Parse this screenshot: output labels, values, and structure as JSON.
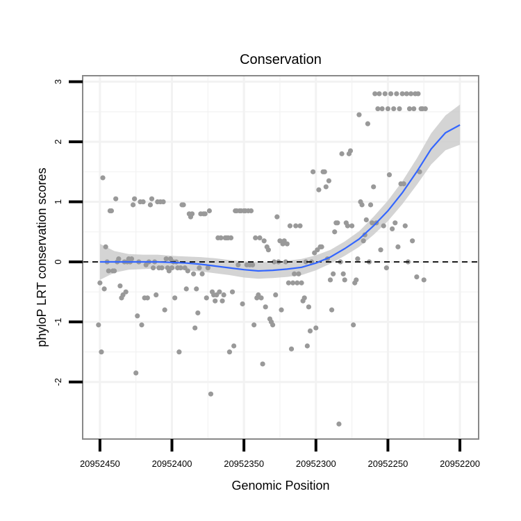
{
  "chart_data": {
    "type": "scatter",
    "title": "Conservation",
    "xlabel": "Genomic Position",
    "ylabel": "phyloP LRT conservation scores",
    "xlim": [
      20952462,
      20952187
    ],
    "ylim": [
      -2.95,
      3.1
    ],
    "x_reversed": true,
    "xticks": [
      20952450,
      20952400,
      20952350,
      20952300,
      20952250,
      20952200
    ],
    "xtick_labels": [
      "20952450",
      "20952400",
      "20952350",
      "20952300",
      "20952250",
      "20952200"
    ],
    "yticks": [
      -2,
      -1,
      0,
      1,
      2,
      3
    ],
    "ytick_labels": [
      "-2",
      "-1",
      "0",
      "1",
      "2",
      "3"
    ],
    "grid": true,
    "reference_line": {
      "y": 0,
      "style": "dashed"
    },
    "colors": {
      "points": "#999999",
      "smooth": "#3366ff",
      "ribbon": "#cccccc",
      "border": "#888888",
      "grid": "#f2f2f2"
    },
    "points": [
      {
        "x": 20952451,
        "y": -1.05
      },
      {
        "x": 20952450,
        "y": -0.35
      },
      {
        "x": 20952449,
        "y": -1.5
      },
      {
        "x": 20952448,
        "y": 1.4
      },
      {
        "x": 20952447,
        "y": -0.45
      },
      {
        "x": 20952446,
        "y": 0.25
      },
      {
        "x": 20952445,
        "y": 0.0
      },
      {
        "x": 20952444,
        "y": -0.15
      },
      {
        "x": 20952443,
        "y": 0.85
      },
      {
        "x": 20952442,
        "y": 0.85
      },
      {
        "x": 20952441,
        "y": -0.15
      },
      {
        "x": 20952440,
        "y": -0.15
      },
      {
        "x": 20952439,
        "y": 1.05
      },
      {
        "x": 20952438,
        "y": 0.0
      },
      {
        "x": 20952437,
        "y": 0.05
      },
      {
        "x": 20952436,
        "y": -0.4
      },
      {
        "x": 20952435,
        "y": -0.6
      },
      {
        "x": 20952434,
        "y": -0.55
      },
      {
        "x": 20952433,
        "y": 0.0
      },
      {
        "x": 20952432,
        "y": -0.5
      },
      {
        "x": 20952431,
        "y": 0.0
      },
      {
        "x": 20952430,
        "y": 0.05
      },
      {
        "x": 20952429,
        "y": 0.0
      },
      {
        "x": 20952428,
        "y": 0.05
      },
      {
        "x": 20952427,
        "y": 0.95
      },
      {
        "x": 20952426,
        "y": 1.05
      },
      {
        "x": 20952425,
        "y": -1.85
      },
      {
        "x": 20952424,
        "y": -0.9
      },
      {
        "x": 20952423,
        "y": 0.0
      },
      {
        "x": 20952422,
        "y": 1.0
      },
      {
        "x": 20952421,
        "y": -1.05
      },
      {
        "x": 20952420,
        "y": 1.0
      },
      {
        "x": 20952419,
        "y": -0.6
      },
      {
        "x": 20952418,
        "y": -0.05
      },
      {
        "x": 20952417,
        "y": -0.6
      },
      {
        "x": 20952416,
        "y": 0.0
      },
      {
        "x": 20952415,
        "y": 0.95
      },
      {
        "x": 20952414,
        "y": 1.05
      },
      {
        "x": 20952413,
        "y": -0.1
      },
      {
        "x": 20952412,
        "y": 0.0
      },
      {
        "x": 20952411,
        "y": -0.55
      },
      {
        "x": 20952410,
        "y": 1.0
      },
      {
        "x": 20952409,
        "y": -0.1
      },
      {
        "x": 20952408,
        "y": 1.0
      },
      {
        "x": 20952407,
        "y": -0.1
      },
      {
        "x": 20952406,
        "y": 1.0
      },
      {
        "x": 20952405,
        "y": -0.8
      },
      {
        "x": 20952404,
        "y": 0.05
      },
      {
        "x": 20952403,
        "y": -0.1
      },
      {
        "x": 20952402,
        "y": -0.15
      },
      {
        "x": 20952401,
        "y": 0.05
      },
      {
        "x": 20952400,
        "y": -0.1
      },
      {
        "x": 20952399,
        "y": 0.0
      },
      {
        "x": 20952398,
        "y": -0.6
      },
      {
        "x": 20952397,
        "y": 0.0
      },
      {
        "x": 20952396,
        "y": -0.1
      },
      {
        "x": 20952395,
        "y": -1.5
      },
      {
        "x": 20952394,
        "y": -0.1
      },
      {
        "x": 20952393,
        "y": 0.95
      },
      {
        "x": 20952392,
        "y": 0.95
      },
      {
        "x": 20952391,
        "y": -0.1
      },
      {
        "x": 20952390,
        "y": -0.45
      },
      {
        "x": 20952389,
        "y": -0.15
      },
      {
        "x": 20952388,
        "y": 0.8
      },
      {
        "x": 20952387,
        "y": 0.75
      },
      {
        "x": 20952386,
        "y": 0.8
      },
      {
        "x": 20952385,
        "y": -0.2
      },
      {
        "x": 20952384,
        "y": -1.1
      },
      {
        "x": 20952383,
        "y": -0.45
      },
      {
        "x": 20952382,
        "y": -0.85
      },
      {
        "x": 20952381,
        "y": -0.1
      },
      {
        "x": 20952380,
        "y": 0.8
      },
      {
        "x": 20952379,
        "y": -0.2
      },
      {
        "x": 20952378,
        "y": 0.8
      },
      {
        "x": 20952377,
        "y": 0.8
      },
      {
        "x": 20952376,
        "y": -0.6
      },
      {
        "x": 20952375,
        "y": -0.1
      },
      {
        "x": 20952374,
        "y": 0.85
      },
      {
        "x": 20952373,
        "y": -2.2
      },
      {
        "x": 20952372,
        "y": -0.5
      },
      {
        "x": 20952371,
        "y": -0.55
      },
      {
        "x": 20952370,
        "y": -0.65
      },
      {
        "x": 20952369,
        "y": -0.55
      },
      {
        "x": 20952368,
        "y": 0.4
      },
      {
        "x": 20952367,
        "y": -0.5
      },
      {
        "x": 20952366,
        "y": 0.4
      },
      {
        "x": 20952365,
        "y": -0.65
      },
      {
        "x": 20952364,
        "y": -0.55
      },
      {
        "x": 20952363,
        "y": 0.4
      },
      {
        "x": 20952362,
        "y": 0.4
      },
      {
        "x": 20952361,
        "y": 0.4
      },
      {
        "x": 20952360,
        "y": -1.5
      },
      {
        "x": 20952359,
        "y": 0.4
      },
      {
        "x": 20952358,
        "y": -0.5
      },
      {
        "x": 20952357,
        "y": -1.4
      },
      {
        "x": 20952356,
        "y": 0.85
      },
      {
        "x": 20952355,
        "y": 0.85
      },
      {
        "x": 20952354,
        "y": -0.05
      },
      {
        "x": 20952353,
        "y": 0.85
      },
      {
        "x": 20952352,
        "y": 0.85
      },
      {
        "x": 20952351,
        "y": -0.7
      },
      {
        "x": 20952350,
        "y": 0.85
      },
      {
        "x": 20952349,
        "y": 0.85
      },
      {
        "x": 20952348,
        "y": -0.05
      },
      {
        "x": 20952347,
        "y": 0.85
      },
      {
        "x": 20952346,
        "y": -0.05
      },
      {
        "x": 20952345,
        "y": 0.85
      },
      {
        "x": 20952344,
        "y": -0.05
      },
      {
        "x": 20952343,
        "y": -1.05
      },
      {
        "x": 20952342,
        "y": 0.4
      },
      {
        "x": 20952341,
        "y": -0.6
      },
      {
        "x": 20952340,
        "y": -0.55
      },
      {
        "x": 20952339,
        "y": 0.4
      },
      {
        "x": 20952338,
        "y": -0.6
      },
      {
        "x": 20952337,
        "y": -1.7
      },
      {
        "x": 20952336,
        "y": 0.35
      },
      {
        "x": 20952335,
        "y": -0.75
      },
      {
        "x": 20952334,
        "y": 0.25
      },
      {
        "x": 20952333,
        "y": 0.2
      },
      {
        "x": 20952332,
        "y": -0.95
      },
      {
        "x": 20952331,
        "y": -1.0
      },
      {
        "x": 20952330,
        "y": -1.05
      },
      {
        "x": 20952329,
        "y": 0.0
      },
      {
        "x": 20952328,
        "y": -0.55
      },
      {
        "x": 20952327,
        "y": 0.75
      },
      {
        "x": 20952326,
        "y": 0.0
      },
      {
        "x": 20952325,
        "y": 0.35
      },
      {
        "x": 20952324,
        "y": -0.8
      },
      {
        "x": 20952323,
        "y": 0.3
      },
      {
        "x": 20952322,
        "y": 0.35
      },
      {
        "x": 20952321,
        "y": 0.0
      },
      {
        "x": 20952320,
        "y": 0.3
      },
      {
        "x": 20952319,
        "y": -0.35
      },
      {
        "x": 20952318,
        "y": 0.6
      },
      {
        "x": 20952317,
        "y": -1.45
      },
      {
        "x": 20952316,
        "y": -0.35
      },
      {
        "x": 20952315,
        "y": -0.2
      },
      {
        "x": 20952314,
        "y": 0.6
      },
      {
        "x": 20952313,
        "y": -0.35
      },
      {
        "x": 20952312,
        "y": -0.2
      },
      {
        "x": 20952311,
        "y": 0.6
      },
      {
        "x": 20952310,
        "y": -0.35
      },
      {
        "x": 20952309,
        "y": -0.65
      },
      {
        "x": 20952308,
        "y": -0.6
      },
      {
        "x": 20952307,
        "y": 0.0
      },
      {
        "x": 20952306,
        "y": -1.4
      },
      {
        "x": 20952305,
        "y": -0.75
      },
      {
        "x": 20952304,
        "y": -1.15
      },
      {
        "x": 20952303,
        "y": 0.0
      },
      {
        "x": 20952302,
        "y": 1.5
      },
      {
        "x": 20952301,
        "y": 0.15
      },
      {
        "x": 20952300,
        "y": -1.1
      },
      {
        "x": 20952299,
        "y": 0.2
      },
      {
        "x": 20952298,
        "y": 1.2
      },
      {
        "x": 20952297,
        "y": 0.25
      },
      {
        "x": 20952296,
        "y": 0.25
      },
      {
        "x": 20952295,
        "y": 1.5
      },
      {
        "x": 20952294,
        "y": 1.5
      },
      {
        "x": 20952293,
        "y": 1.25
      },
      {
        "x": 20952292,
        "y": 0.05
      },
      {
        "x": 20952291,
        "y": 1.35
      },
      {
        "x": 20952290,
        "y": -0.3
      },
      {
        "x": 20952289,
        "y": -0.8
      },
      {
        "x": 20952288,
        "y": -0.2
      },
      {
        "x": 20952287,
        "y": 0.5
      },
      {
        "x": 20952286,
        "y": 0.65
      },
      {
        "x": 20952285,
        "y": 0.65
      },
      {
        "x": 20952284,
        "y": -2.7
      },
      {
        "x": 20952283,
        "y": 0.0
      },
      {
        "x": 20952282,
        "y": 1.8
      },
      {
        "x": 20952281,
        "y": -0.2
      },
      {
        "x": 20952280,
        "y": -0.3
      },
      {
        "x": 20952279,
        "y": 0.65
      },
      {
        "x": 20952278,
        "y": 0.6
      },
      {
        "x": 20952277,
        "y": 1.8
      },
      {
        "x": 20952276,
        "y": 1.85
      },
      {
        "x": 20952275,
        "y": 0.6
      },
      {
        "x": 20952274,
        "y": -1.05
      },
      {
        "x": 20952273,
        "y": -0.35
      },
      {
        "x": 20952272,
        "y": -0.3
      },
      {
        "x": 20952271,
        "y": 0.05
      },
      {
        "x": 20952270,
        "y": 2.45
      },
      {
        "x": 20952269,
        "y": 1.0
      },
      {
        "x": 20952268,
        "y": 0.95
      },
      {
        "x": 20952267,
        "y": 0.35
      },
      {
        "x": 20952266,
        "y": 0.45
      },
      {
        "x": 20952265,
        "y": 0.7
      },
      {
        "x": 20952264,
        "y": 2.3
      },
      {
        "x": 20952263,
        "y": 0.0
      },
      {
        "x": 20952262,
        "y": 0.95
      },
      {
        "x": 20952261,
        "y": 0.65
      },
      {
        "x": 20952260,
        "y": 1.25
      },
      {
        "x": 20952259,
        "y": 2.8
      },
      {
        "x": 20952258,
        "y": 0.65
      },
      {
        "x": 20952257,
        "y": 2.55
      },
      {
        "x": 20952256,
        "y": 2.8
      },
      {
        "x": 20952255,
        "y": 0.2
      },
      {
        "x": 20952254,
        "y": 2.55
      },
      {
        "x": 20952253,
        "y": 0.6
      },
      {
        "x": 20952252,
        "y": 2.8
      },
      {
        "x": 20952251,
        "y": -0.1
      },
      {
        "x": 20952250,
        "y": 2.55
      },
      {
        "x": 20952249,
        "y": 1.45
      },
      {
        "x": 20952248,
        "y": 2.8
      },
      {
        "x": 20952247,
        "y": 0.55
      },
      {
        "x": 20952246,
        "y": 2.55
      },
      {
        "x": 20952245,
        "y": 0.65
      },
      {
        "x": 20952244,
        "y": 2.8
      },
      {
        "x": 20952243,
        "y": 0.25
      },
      {
        "x": 20952242,
        "y": 2.55
      },
      {
        "x": 20952241,
        "y": 1.3
      },
      {
        "x": 20952240,
        "y": 2.8
      },
      {
        "x": 20952239,
        "y": 1.3
      },
      {
        "x": 20952238,
        "y": 0.6
      },
      {
        "x": 20952237,
        "y": 2.8
      },
      {
        "x": 20952236,
        "y": 0.0
      },
      {
        "x": 20952235,
        "y": 2.55
      },
      {
        "x": 20952234,
        "y": 2.8
      },
      {
        "x": 20952233,
        "y": 0.35
      },
      {
        "x": 20952232,
        "y": 2.55
      },
      {
        "x": 20952231,
        "y": 2.8
      },
      {
        "x": 20952230,
        "y": -0.25
      },
      {
        "x": 20952229,
        "y": 2.8
      },
      {
        "x": 20952228,
        "y": 1.5
      },
      {
        "x": 20952227,
        "y": 2.55
      },
      {
        "x": 20952226,
        "y": 2.55
      },
      {
        "x": 20952225,
        "y": -0.3
      },
      {
        "x": 20952224,
        "y": 2.55
      }
    ],
    "smooth": [
      {
        "x": 20952450,
        "y": 0.0,
        "lo": -0.3,
        "hi": 0.3
      },
      {
        "x": 20952440,
        "y": 0.0,
        "lo": -0.18,
        "hi": 0.18
      },
      {
        "x": 20952430,
        "y": 0.0,
        "lo": -0.13,
        "hi": 0.13
      },
      {
        "x": 20952420,
        "y": 0.0,
        "lo": -0.12,
        "hi": 0.12
      },
      {
        "x": 20952410,
        "y": 0.0,
        "lo": -0.11,
        "hi": 0.12
      },
      {
        "x": 20952400,
        "y": -0.01,
        "lo": -0.12,
        "hi": 0.1
      },
      {
        "x": 20952390,
        "y": -0.02,
        "lo": -0.14,
        "hi": 0.09
      },
      {
        "x": 20952380,
        "y": -0.04,
        "lo": -0.16,
        "hi": 0.08
      },
      {
        "x": 20952370,
        "y": -0.07,
        "lo": -0.19,
        "hi": 0.06
      },
      {
        "x": 20952360,
        "y": -0.1,
        "lo": -0.22,
        "hi": 0.03
      },
      {
        "x": 20952350,
        "y": -0.13,
        "lo": -0.26,
        "hi": 0.01
      },
      {
        "x": 20952340,
        "y": -0.15,
        "lo": -0.28,
        "hi": -0.01
      },
      {
        "x": 20952330,
        "y": -0.14,
        "lo": -0.27,
        "hi": 0.0
      },
      {
        "x": 20952320,
        "y": -0.12,
        "lo": -0.25,
        "hi": 0.02
      },
      {
        "x": 20952310,
        "y": -0.09,
        "lo": -0.22,
        "hi": 0.05
      },
      {
        "x": 20952300,
        "y": -0.02,
        "lo": -0.14,
        "hi": 0.11
      },
      {
        "x": 20952290,
        "y": 0.08,
        "lo": -0.03,
        "hi": 0.2
      },
      {
        "x": 20952280,
        "y": 0.22,
        "lo": 0.1,
        "hi": 0.34
      },
      {
        "x": 20952270,
        "y": 0.38,
        "lo": 0.25,
        "hi": 0.51
      },
      {
        "x": 20952260,
        "y": 0.6,
        "lo": 0.45,
        "hi": 0.75
      },
      {
        "x": 20952250,
        "y": 0.85,
        "lo": 0.68,
        "hi": 1.02
      },
      {
        "x": 20952240,
        "y": 1.15,
        "lo": 0.96,
        "hi": 1.34
      },
      {
        "x": 20952230,
        "y": 1.5,
        "lo": 1.28,
        "hi": 1.72
      },
      {
        "x": 20952220,
        "y": 1.88,
        "lo": 1.62,
        "hi": 2.14
      },
      {
        "x": 20952210,
        "y": 2.15,
        "lo": 1.86,
        "hi": 2.44
      },
      {
        "x": 20952200,
        "y": 2.28,
        "lo": 1.95,
        "hi": 2.62
      }
    ]
  }
}
